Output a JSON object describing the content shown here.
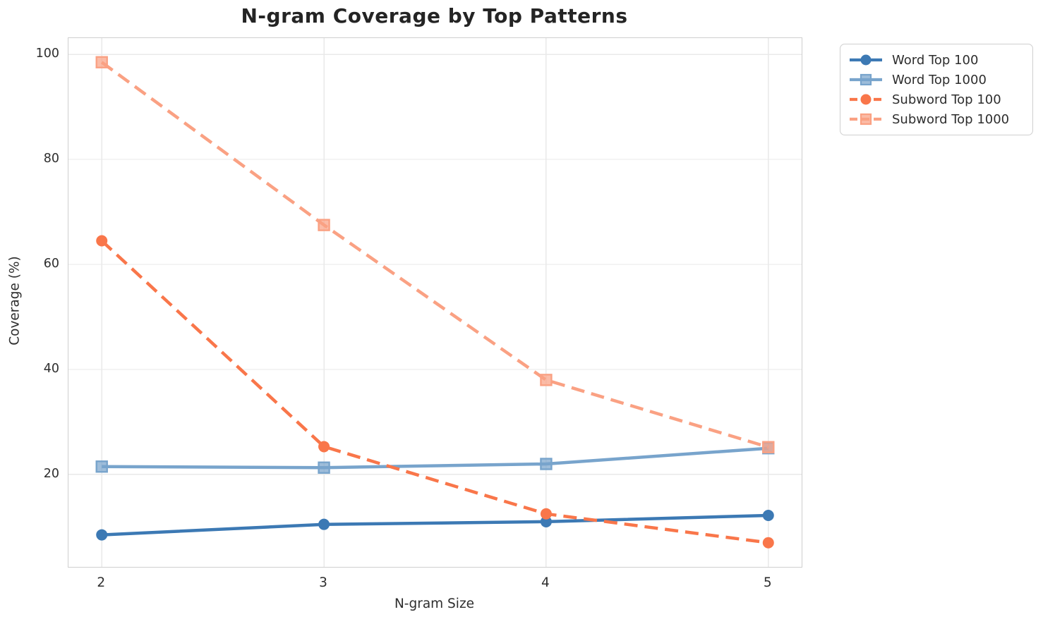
{
  "title": "N-gram Coverage by Top Patterns",
  "chart_data": {
    "type": "line",
    "title": "N-gram Coverage by Top Patterns",
    "xlabel": "N-gram Size",
    "ylabel": "Coverage (%)",
    "x": [
      2,
      3,
      4,
      5
    ],
    "series": [
      {
        "name": "Word Top 100",
        "values": [
          8.5,
          10.5,
          11.0,
          12.2
        ],
        "color": "#3c79b4",
        "marker": "circle",
        "line_style": "solid"
      },
      {
        "name": "Word Top 1000",
        "values": [
          21.5,
          21.3,
          22.0,
          25.0
        ],
        "color": "#78a4cc",
        "marker": "square",
        "line_style": "solid"
      },
      {
        "name": "Subword Top 100",
        "values": [
          64.5,
          25.3,
          12.5,
          7.0
        ],
        "color": "#f9764a",
        "marker": "circle",
        "line_style": "dashed"
      },
      {
        "name": "Subword Top 1000",
        "values": [
          98.5,
          67.5,
          38.0,
          25.2
        ],
        "color": "#faa183",
        "marker": "square",
        "line_style": "dashed"
      }
    ],
    "x_ticks": [
      2,
      3,
      4,
      5
    ],
    "y_ticks": [
      20,
      40,
      60,
      80,
      100
    ],
    "xlim": [
      1.85,
      5.15
    ],
    "ylim": [
      2.4,
      103.1
    ],
    "grid": true,
    "legend_position": "outside upper right"
  },
  "colors": {
    "grid": "#e9e9e9",
    "spine": "#cfcfcf",
    "text": "#2e2e2e",
    "title": "#242424",
    "background": "#ffffff"
  }
}
